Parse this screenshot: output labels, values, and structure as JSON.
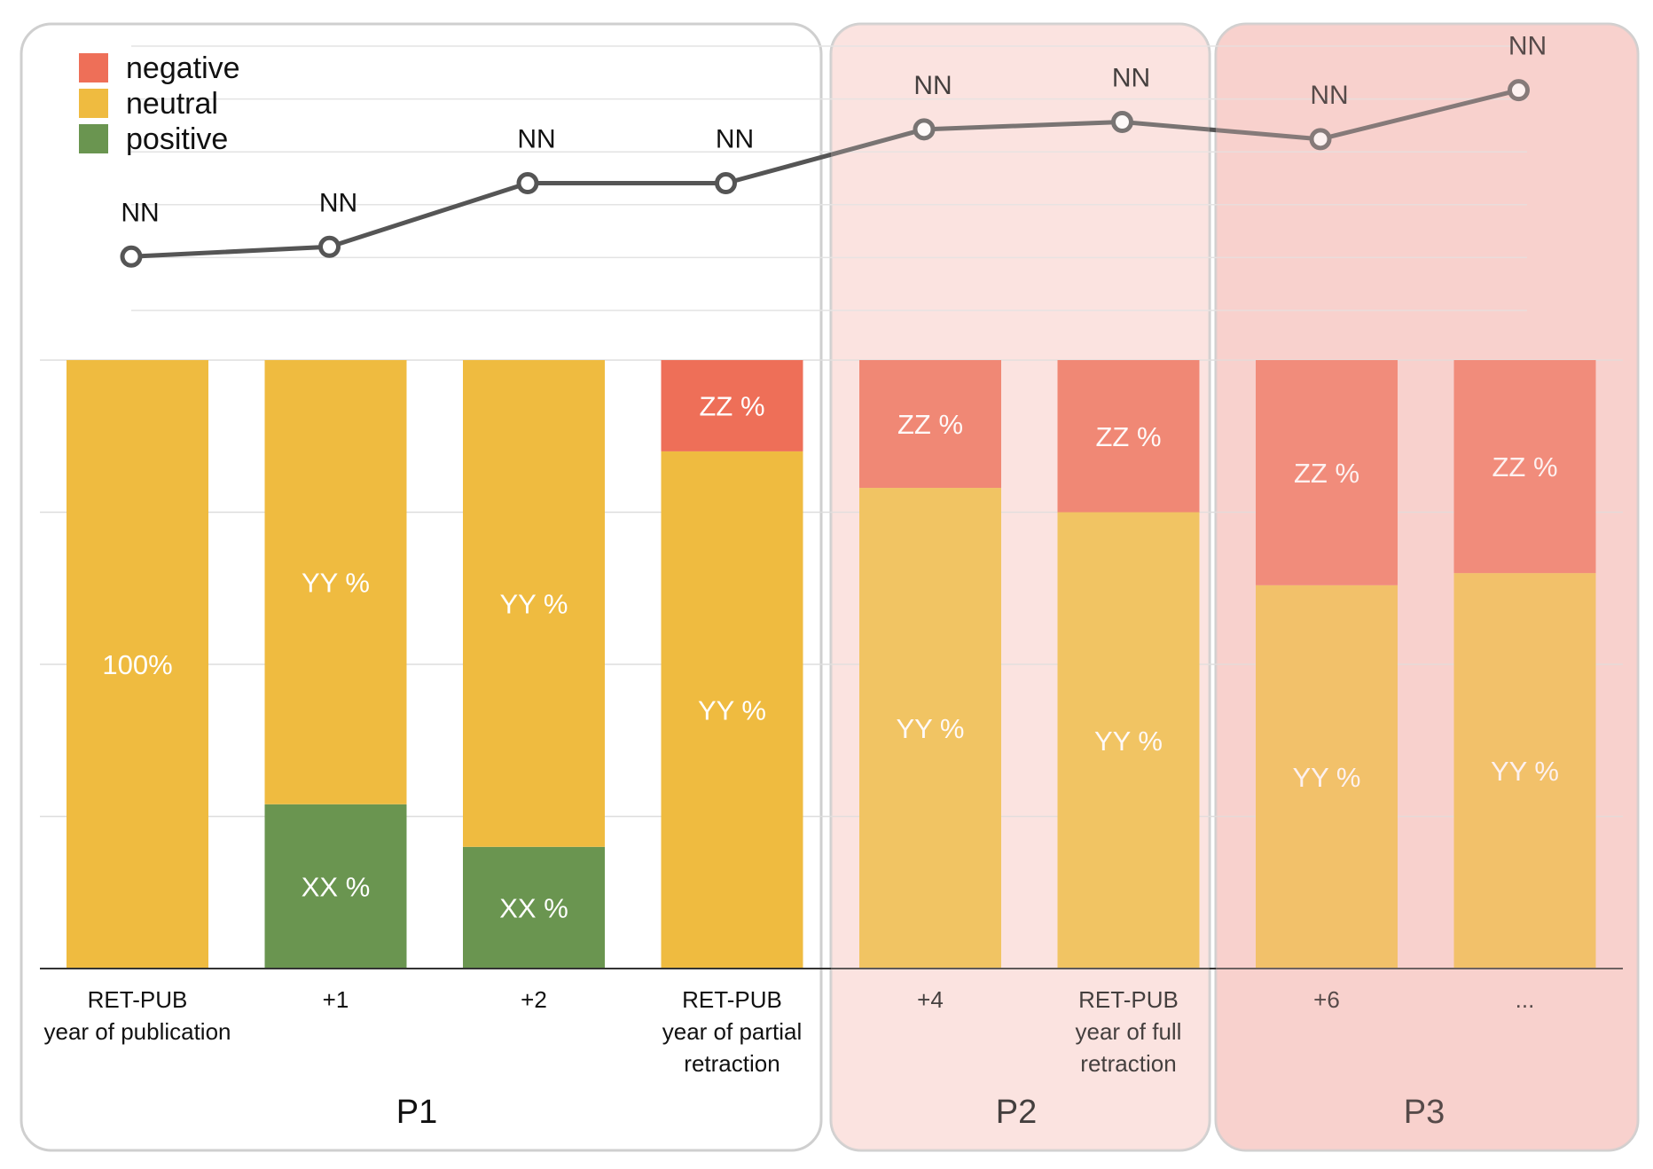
{
  "chart_data": {
    "type": "bar",
    "stacked": true,
    "categories": [
      [
        "RET-PUB",
        "year of publication"
      ],
      [
        "+1"
      ],
      [
        "+2"
      ],
      [
        "RET-PUB",
        "year of partial",
        "retraction"
      ],
      [
        "+4"
      ],
      [
        "RET-PUB",
        "year of full",
        "retraction"
      ],
      [
        "+6"
      ],
      [
        "..."
      ]
    ],
    "series": [
      {
        "name": "positive",
        "color": "#6a9550",
        "values": [
          0,
          27,
          20,
          0,
          0,
          0,
          0,
          0
        ],
        "labels": [
          "",
          "XX %",
          "XX %",
          "",
          "",
          "",
          "",
          ""
        ]
      },
      {
        "name": "neutral",
        "color": "#efbb40",
        "values": [
          100,
          73,
          80,
          85,
          79,
          75,
          63,
          65
        ],
        "labels": [
          "100%",
          "YY %",
          "YY %",
          "YY %",
          "YY %",
          "YY %",
          "YY %",
          "YY %"
        ]
      },
      {
        "name": "negative",
        "color": "#ee6f58",
        "values": [
          0,
          0,
          0,
          15,
          21,
          25,
          37,
          35
        ],
        "labels": [
          "",
          "",
          "",
          "ZZ %",
          "ZZ %",
          "ZZ %",
          "ZZ %",
          "ZZ %"
        ]
      }
    ],
    "line": {
      "values": [
        35,
        37,
        50,
        50,
        61,
        62.5,
        59,
        69
      ],
      "labels": [
        "NN",
        "NN",
        "NN",
        "NN",
        "NN",
        "NN",
        "NN",
        "NN"
      ],
      "color": "#555555",
      "ylim": [
        24,
        78
      ]
    },
    "periods": [
      {
        "label": "P1",
        "range": [
          0,
          3
        ]
      },
      {
        "label": "P2",
        "range": [
          4,
          5
        ]
      },
      {
        "label": "P3",
        "range": [
          6,
          7
        ]
      }
    ],
    "legend": {
      "position": "top-left",
      "items": [
        "negative",
        "neutral",
        "positive"
      ]
    },
    "ylim": [
      0,
      100
    ],
    "grid": true,
    "title": "",
    "xlabel": "",
    "ylabel": ""
  }
}
